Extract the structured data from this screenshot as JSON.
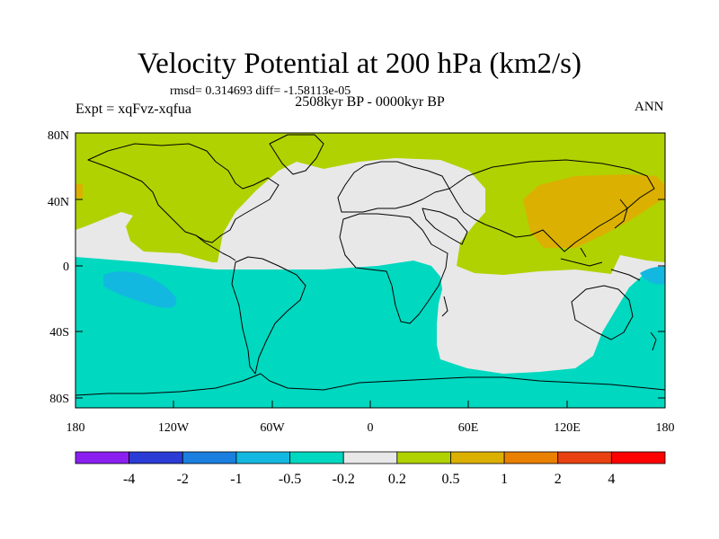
{
  "header": {
    "title": "Velocity Potential at 200 hPa (km2/s)",
    "stats": "rmsd= 0.314693 diff= -1.58113e-05",
    "period": "2508kyr BP - 0000kyr BP",
    "experiment": "Expt = xqFvz-xqfua",
    "season": "ANN"
  },
  "map": {
    "lat_labels": [
      "80N",
      "40N",
      "0",
      "40S",
      "80S"
    ],
    "lon_labels": [
      "180",
      "120W",
      "60W",
      "0",
      "60E",
      "120E",
      "180"
    ]
  },
  "colorbar": {
    "labels": [
      "-4",
      "-2",
      "-1",
      "-0.5",
      "-0.2",
      "0.2",
      "0.5",
      "1",
      "2",
      "4"
    ],
    "colors": [
      "#8a1ff0",
      "#2b3bd6",
      "#1b7fe0",
      "#13b8e0",
      "#00d8c0",
      "#e8e8e8",
      "#b0d200",
      "#dcb000",
      "#e98000",
      "#e84010",
      "#ff0000"
    ]
  },
  "field_colors": {
    "neutral": "#e8e8e8",
    "positive_0_2": "#b0d200",
    "positive_0_5": "#dcb000",
    "negative_0_2": "#00d8c0",
    "negative_0_5": "#13b8e0",
    "coastline": "#000000"
  }
}
